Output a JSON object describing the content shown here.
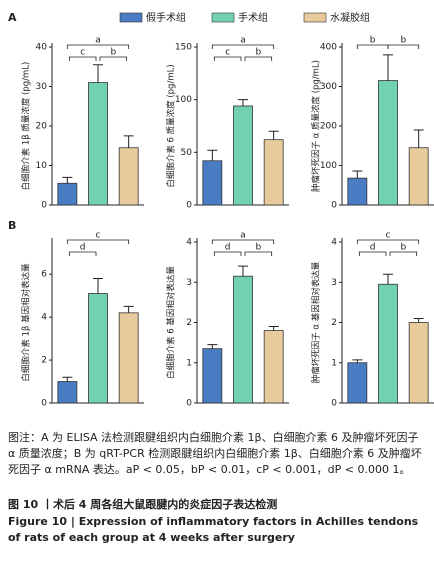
{
  "panel_labels": [
    "A",
    "B"
  ],
  "groups": [
    {
      "name": "假手术组",
      "color": "#4a7cc4"
    },
    {
      "name": "手术组",
      "color": "#72d1b2"
    },
    {
      "name": "水凝胶组",
      "color": "#e8cb9c"
    }
  ],
  "chart_data": [
    {
      "type": "bar",
      "ylabel": "白细胞介素 1β 质量浓度 (pg/mL)",
      "values": [
        5.5,
        31,
        14.5
      ],
      "errors": [
        1.5,
        4.5,
        3
      ],
      "ylim": [
        0,
        40
      ],
      "yticks": [
        0,
        10,
        20,
        30,
        40
      ],
      "brackets": [
        {
          "from": 0,
          "to": 2,
          "label": "a"
        },
        {
          "from": 0,
          "to": 1,
          "label": "c"
        },
        {
          "from": 1,
          "to": 2,
          "label": "b"
        }
      ]
    },
    {
      "type": "bar",
      "ylabel": "白细胞介素 6 质量浓度 (pg/mL)",
      "values": [
        42,
        94,
        62
      ],
      "errors": [
        10,
        6,
        8
      ],
      "ylim": [
        0,
        150
      ],
      "yticks": [
        0,
        50,
        100,
        150
      ],
      "brackets": [
        {
          "from": 0,
          "to": 2,
          "label": "a"
        },
        {
          "from": 0,
          "to": 1,
          "label": "c"
        },
        {
          "from": 1,
          "to": 2,
          "label": "b"
        }
      ]
    },
    {
      "type": "bar",
      "ylabel": "肿瘤坏死因子 α 质量浓度 (pg/mL)",
      "values": [
        68,
        315,
        145
      ],
      "errors": [
        18,
        65,
        45
      ],
      "ylim": [
        0,
        400
      ],
      "yticks": [
        0,
        100,
        200,
        300,
        400
      ],
      "brackets": [
        {
          "from": 0,
          "to": 1,
          "label": "b"
        },
        {
          "from": 1,
          "to": 2,
          "label": "b"
        }
      ]
    },
    {
      "type": "bar",
      "ylabel": "白细胞介素 1β 基因相对表达量",
      "values": [
        1.0,
        5.1,
        4.2
      ],
      "errors": [
        0.2,
        0.7,
        0.3
      ],
      "ylim": [
        0,
        7.5
      ],
      "yticks": [
        0,
        2,
        4,
        6
      ],
      "brackets": [
        {
          "from": 0,
          "to": 2,
          "label": "c"
        },
        {
          "from": 0,
          "to": 1,
          "label": "d"
        }
      ]
    },
    {
      "type": "bar",
      "ylabel": "白细胞介素 6 基因相对表达量",
      "values": [
        1.35,
        3.15,
        1.8
      ],
      "errors": [
        0.1,
        0.25,
        0.1
      ],
      "ylim": [
        0,
        4
      ],
      "yticks": [
        0,
        1,
        2,
        3,
        4
      ],
      "brackets": [
        {
          "from": 0,
          "to": 2,
          "label": "a"
        },
        {
          "from": 0,
          "to": 1,
          "label": "d"
        },
        {
          "from": 1,
          "to": 2,
          "label": "b"
        }
      ]
    },
    {
      "type": "bar",
      "ylabel": "肿瘤坏死因子 α 基因相对表达量",
      "values": [
        1.0,
        2.95,
        2.0
      ],
      "errors": [
        0.07,
        0.25,
        0.1
      ],
      "ylim": [
        0,
        4
      ],
      "yticks": [
        0,
        1,
        2,
        3,
        4
      ],
      "brackets": [
        {
          "from": 0,
          "to": 2,
          "label": "c"
        },
        {
          "from": 0,
          "to": 1,
          "label": "d"
        },
        {
          "from": 1,
          "to": 2,
          "label": "b"
        }
      ]
    }
  ],
  "caption": {
    "note": "图注：A 为 ELISA 法检测跟腱组织内白细胞介素 1β、白细胞介素 6 及肿瘤坏死因子 α 质量浓度；B 为 qRT-PCR 检测跟腱组织内白细胞介素 1β、白细胞介素 6 及肿瘤坏死因子 α mRNA 表达。aP < 0.05，bP < 0.01，cP < 0.001，dP < 0.000 1。",
    "title_cn": "图 10 丨术后 4 周各组大鼠跟腱内的炎症因子表达检测",
    "title_en": "Figure 10 | Expression of inflammatory factors in Achilles tendons of rats of each group at 4 weeks after surgery"
  }
}
